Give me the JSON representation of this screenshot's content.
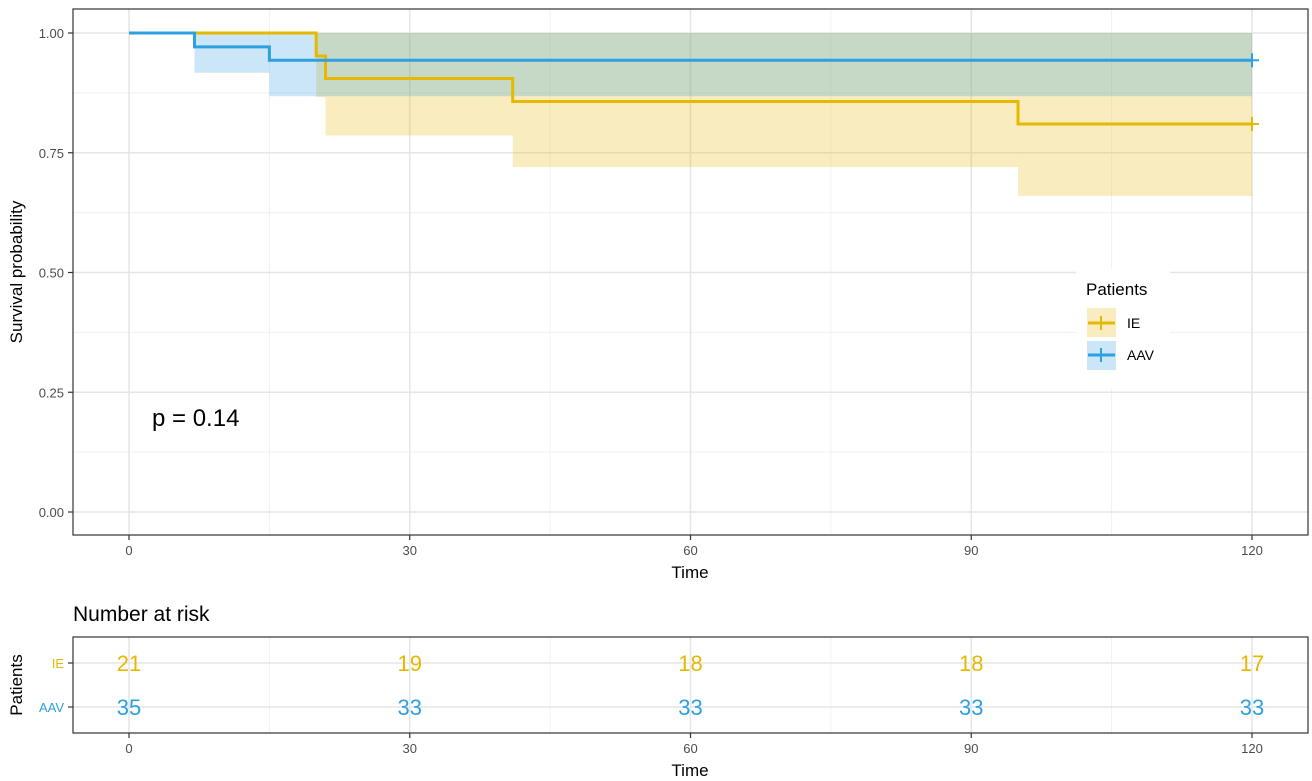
{
  "chart_data": [
    {
      "type": "line",
      "subtype": "kaplan-meier survival curve with confidence bands",
      "xlabel": "Time",
      "ylabel": "Survival probability",
      "xlim": [
        0,
        120
      ],
      "ylim": [
        0,
        1
      ],
      "x_ticks": [
        "0",
        "30",
        "60",
        "90",
        "120"
      ],
      "y_ticks": [
        "0.00",
        "0.25",
        "0.50",
        "0.75",
        "1.00"
      ],
      "grid": true,
      "annotation": "p = 0.14",
      "legend": {
        "title": "Patients",
        "placement": "right-center",
        "entries": [
          "IE",
          "AAV"
        ]
      },
      "series": [
        {
          "name": "IE",
          "color": "#E7B800",
          "steps": [
            {
              "x": 0,
              "y": 1.0,
              "lower": 1.0,
              "upper": 1.0
            },
            {
              "x": 20,
              "y": 0.952,
              "lower": 0.866,
              "upper": 1.0
            },
            {
              "x": 21,
              "y": 0.905,
              "lower": 0.786,
              "upper": 1.0
            },
            {
              "x": 41,
              "y": 0.857,
              "lower": 0.72,
              "upper": 1.0
            },
            {
              "x": 95,
              "y": 0.81,
              "lower": 0.66,
              "upper": 1.0
            }
          ],
          "end_x": 120,
          "censor_marks": [
            {
              "x": 120,
              "y": 0.81
            }
          ]
        },
        {
          "name": "AAV",
          "color": "#2E9FDF",
          "steps": [
            {
              "x": 0,
              "y": 1.0,
              "lower": 1.0,
              "upper": 1.0
            },
            {
              "x": 7,
              "y": 0.971,
              "lower": 0.917,
              "upper": 1.0
            },
            {
              "x": 15,
              "y": 0.943,
              "lower": 0.868,
              "upper": 1.0
            }
          ],
          "end_x": 120,
          "censor_marks": [
            {
              "x": 120,
              "y": 0.943
            }
          ]
        }
      ]
    },
    {
      "type": "table",
      "title": "Number at risk",
      "xlabel": "Time",
      "ylabel": "Patients",
      "xlim": [
        0,
        120
      ],
      "x_ticks": [
        "0",
        "30",
        "60",
        "90",
        "120"
      ],
      "times": [
        0,
        30,
        60,
        90,
        120
      ],
      "rows": [
        {
          "name": "IE",
          "color": "#E7B800",
          "values": [
            21,
            19,
            18,
            18,
            17
          ]
        },
        {
          "name": "AAV",
          "color": "#2E9FDF",
          "values": [
            35,
            33,
            33,
            33,
            33
          ]
        }
      ]
    }
  ]
}
